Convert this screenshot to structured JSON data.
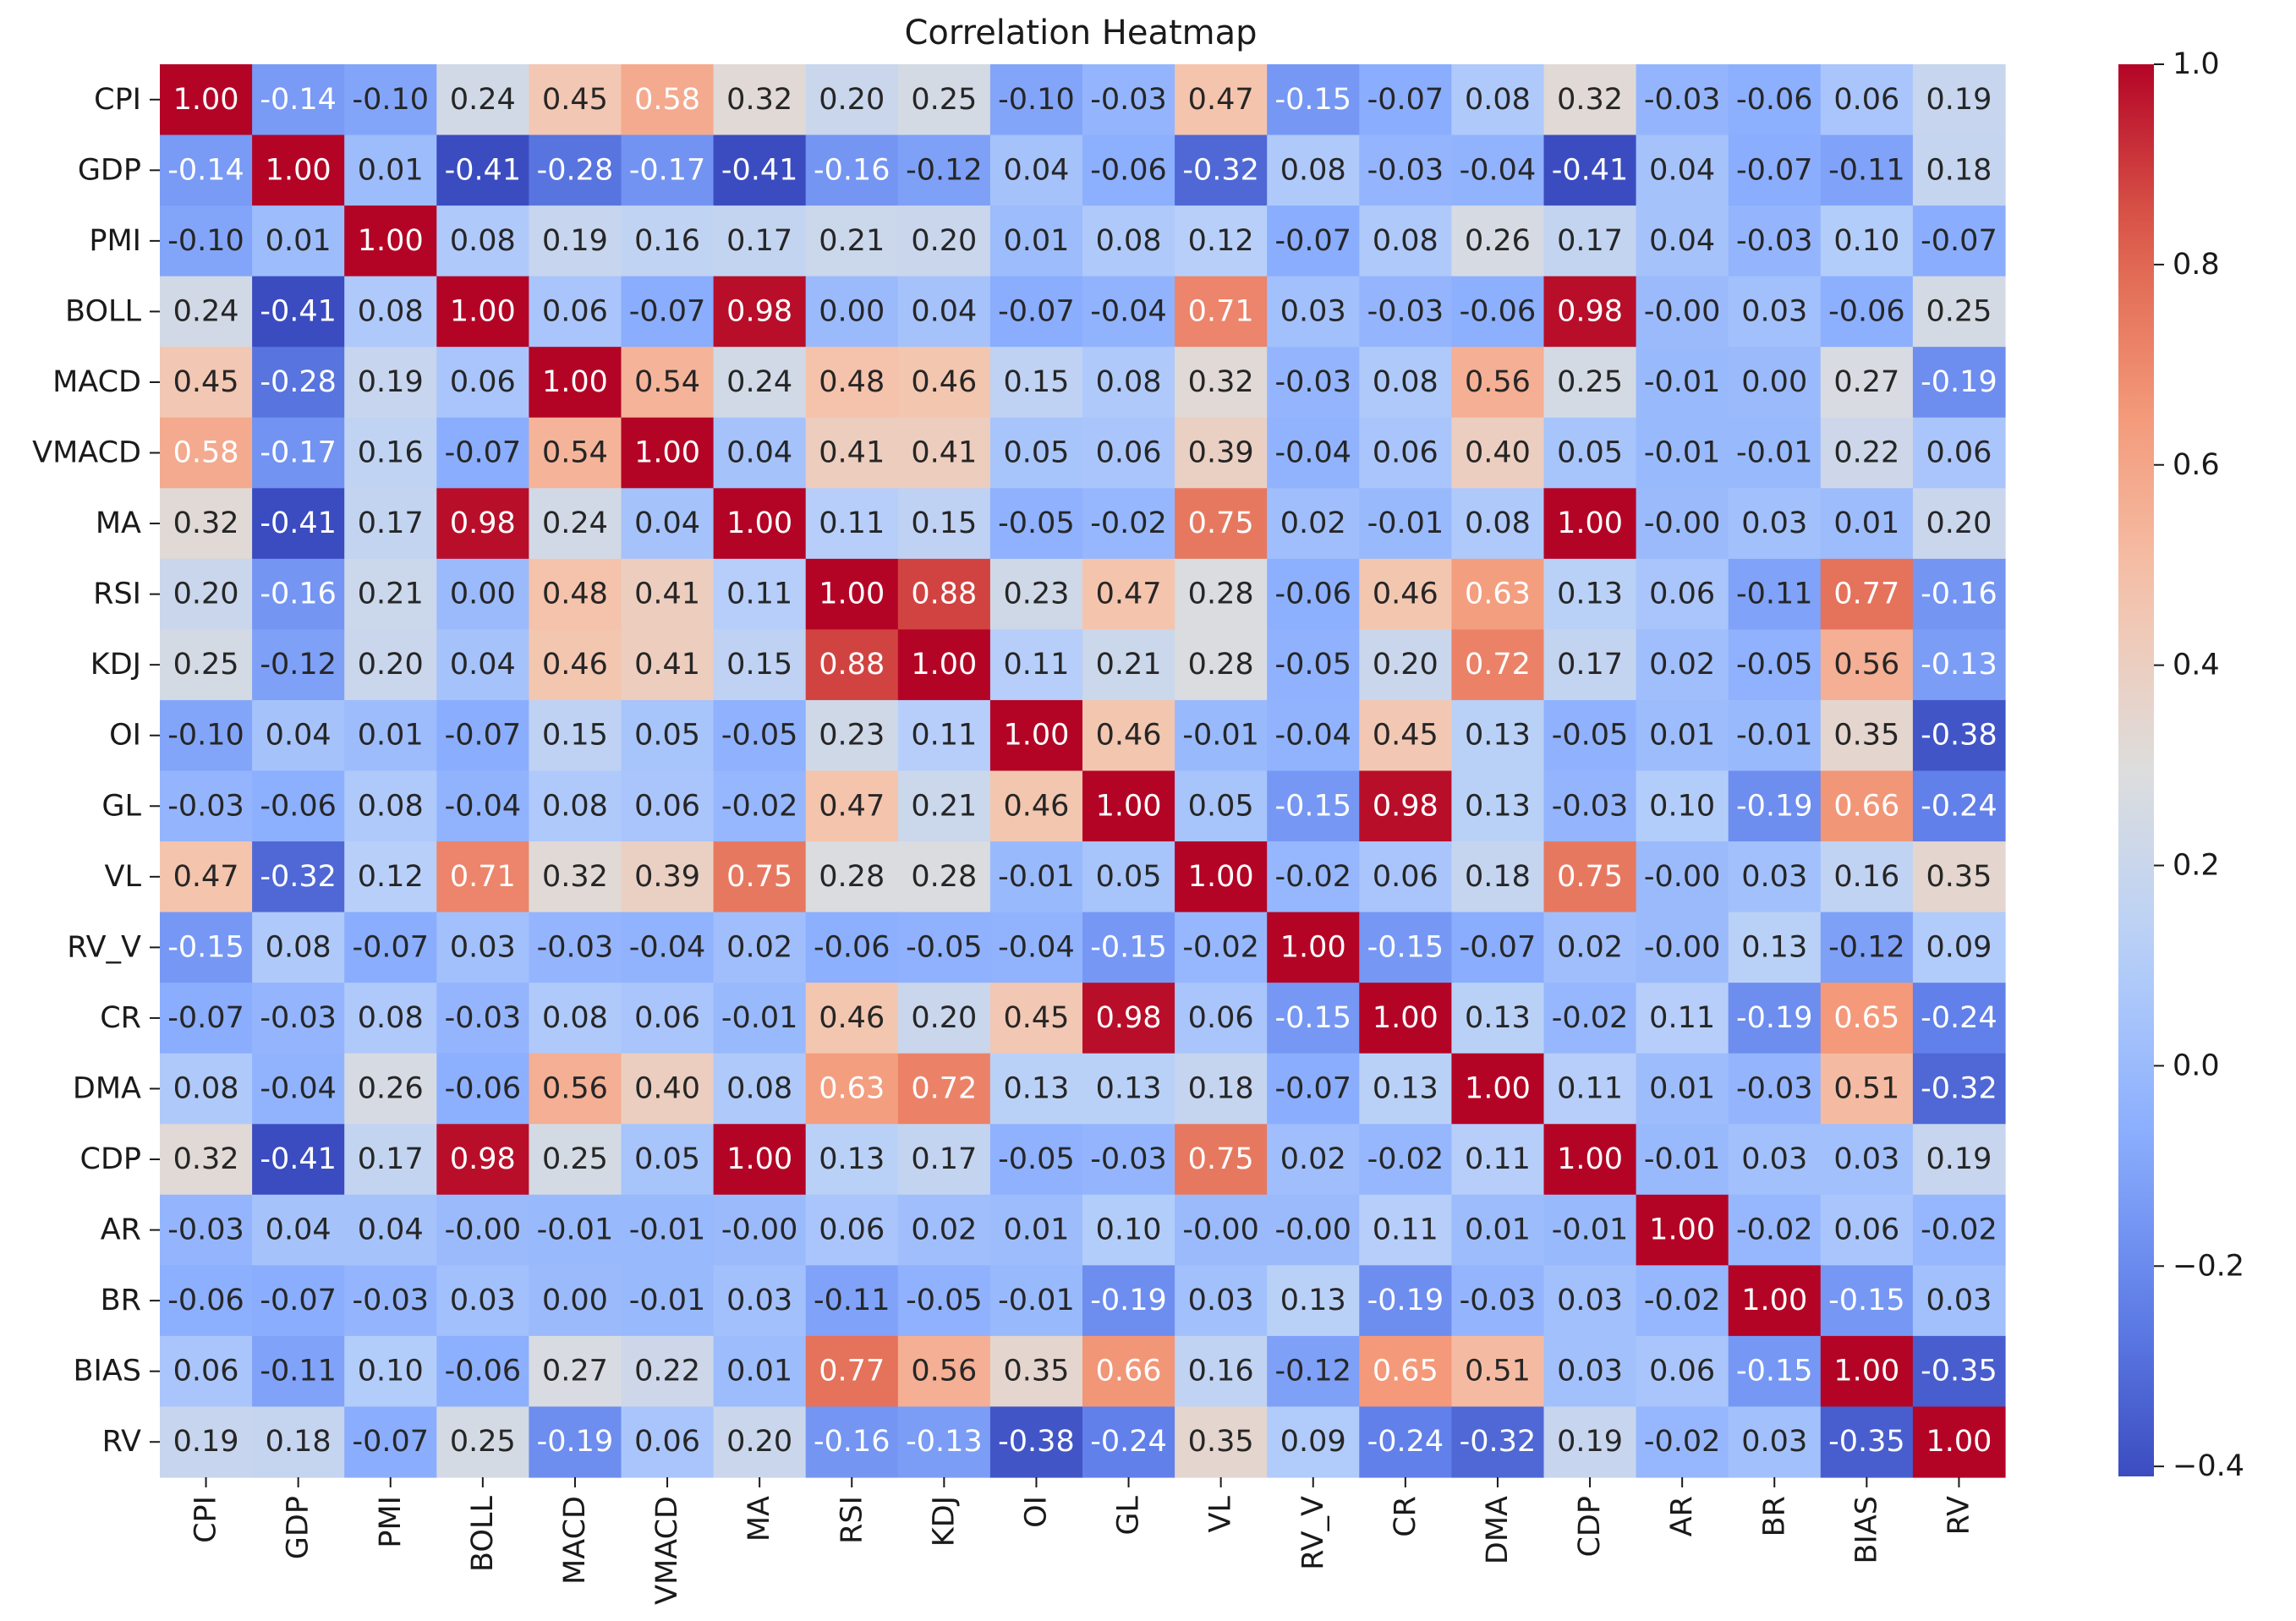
{
  "chart_data": {
    "type": "heatmap",
    "title": "Correlation Heatmap",
    "xlabel": "",
    "ylabel": "",
    "labels": [
      "CPI",
      "GDP",
      "PMI",
      "BOLL",
      "MACD",
      "VMACD",
      "MA",
      "RSI",
      "KDJ",
      "OI",
      "GL",
      "VL",
      "RV_V",
      "CR",
      "DMA",
      "CDP",
      "AR",
      "BR",
      "BIAS",
      "RV"
    ],
    "values": [
      [
        1.0,
        -0.14,
        -0.1,
        0.24,
        0.45,
        0.58,
        0.32,
        0.2,
        0.25,
        -0.1,
        -0.03,
        0.47,
        -0.15,
        -0.07,
        0.08,
        0.32,
        -0.03,
        -0.06,
        0.06,
        0.19
      ],
      [
        -0.14,
        1.0,
        0.01,
        -0.41,
        -0.28,
        -0.17,
        -0.41,
        -0.16,
        -0.12,
        0.04,
        -0.06,
        -0.32,
        0.08,
        -0.03,
        -0.04,
        -0.41,
        0.04,
        -0.07,
        -0.11,
        0.18
      ],
      [
        -0.1,
        0.01,
        1.0,
        0.08,
        0.19,
        0.16,
        0.17,
        0.21,
        0.2,
        0.01,
        0.08,
        0.12,
        -0.07,
        0.08,
        0.26,
        0.17,
        0.04,
        -0.03,
        0.1,
        -0.07
      ],
      [
        0.24,
        -0.41,
        0.08,
        1.0,
        0.06,
        -0.07,
        0.98,
        0.0,
        0.04,
        -0.07,
        -0.04,
        0.71,
        0.03,
        -0.03,
        -0.06,
        0.98,
        -0.0,
        0.03,
        -0.06,
        0.25
      ],
      [
        0.45,
        -0.28,
        0.19,
        0.06,
        1.0,
        0.54,
        0.24,
        0.48,
        0.46,
        0.15,
        0.08,
        0.32,
        -0.03,
        0.08,
        0.56,
        0.25,
        -0.01,
        0.0,
        0.27,
        -0.19
      ],
      [
        0.58,
        -0.17,
        0.16,
        -0.07,
        0.54,
        1.0,
        0.04,
        0.41,
        0.41,
        0.05,
        0.06,
        0.39,
        -0.04,
        0.06,
        0.4,
        0.05,
        -0.01,
        -0.01,
        0.22,
        0.06
      ],
      [
        0.32,
        -0.41,
        0.17,
        0.98,
        0.24,
        0.04,
        1.0,
        0.11,
        0.15,
        -0.05,
        -0.02,
        0.75,
        0.02,
        -0.01,
        0.08,
        1.0,
        -0.0,
        0.03,
        0.01,
        0.2
      ],
      [
        0.2,
        -0.16,
        0.21,
        0.0,
        0.48,
        0.41,
        0.11,
        1.0,
        0.88,
        0.23,
        0.47,
        0.28,
        -0.06,
        0.46,
        0.63,
        0.13,
        0.06,
        -0.11,
        0.77,
        -0.16
      ],
      [
        0.25,
        -0.12,
        0.2,
        0.04,
        0.46,
        0.41,
        0.15,
        0.88,
        1.0,
        0.11,
        0.21,
        0.28,
        -0.05,
        0.2,
        0.72,
        0.17,
        0.02,
        -0.05,
        0.56,
        -0.13
      ],
      [
        -0.1,
        0.04,
        0.01,
        -0.07,
        0.15,
        0.05,
        -0.05,
        0.23,
        0.11,
        1.0,
        0.46,
        -0.01,
        -0.04,
        0.45,
        0.13,
        -0.05,
        0.01,
        -0.01,
        0.35,
        -0.38
      ],
      [
        -0.03,
        -0.06,
        0.08,
        -0.04,
        0.08,
        0.06,
        -0.02,
        0.47,
        0.21,
        0.46,
        1.0,
        0.05,
        -0.15,
        0.98,
        0.13,
        -0.03,
        0.1,
        -0.19,
        0.66,
        -0.24
      ],
      [
        0.47,
        -0.32,
        0.12,
        0.71,
        0.32,
        0.39,
        0.75,
        0.28,
        0.28,
        -0.01,
        0.05,
        1.0,
        -0.02,
        0.06,
        0.18,
        0.75,
        -0.0,
        0.03,
        0.16,
        0.35
      ],
      [
        -0.15,
        0.08,
        -0.07,
        0.03,
        -0.03,
        -0.04,
        0.02,
        -0.06,
        -0.05,
        -0.04,
        -0.15,
        -0.02,
        1.0,
        -0.15,
        -0.07,
        0.02,
        -0.0,
        0.13,
        -0.12,
        0.09
      ],
      [
        -0.07,
        -0.03,
        0.08,
        -0.03,
        0.08,
        0.06,
        -0.01,
        0.46,
        0.2,
        0.45,
        0.98,
        0.06,
        -0.15,
        1.0,
        0.13,
        -0.02,
        0.11,
        -0.19,
        0.65,
        -0.24
      ],
      [
        0.08,
        -0.04,
        0.26,
        -0.06,
        0.56,
        0.4,
        0.08,
        0.63,
        0.72,
        0.13,
        0.13,
        0.18,
        -0.07,
        0.13,
        1.0,
        0.11,
        0.01,
        -0.03,
        0.51,
        -0.32
      ],
      [
        0.32,
        -0.41,
        0.17,
        0.98,
        0.25,
        0.05,
        1.0,
        0.13,
        0.17,
        -0.05,
        -0.03,
        0.75,
        0.02,
        -0.02,
        0.11,
        1.0,
        -0.01,
        0.03,
        0.03,
        0.19
      ],
      [
        -0.03,
        0.04,
        0.04,
        -0.0,
        -0.01,
        -0.01,
        -0.0,
        0.06,
        0.02,
        0.01,
        0.1,
        -0.0,
        -0.0,
        0.11,
        0.01,
        -0.01,
        1.0,
        -0.02,
        0.06,
        -0.02
      ],
      [
        -0.06,
        -0.07,
        -0.03,
        0.03,
        0.0,
        -0.01,
        0.03,
        -0.11,
        -0.05,
        -0.01,
        -0.19,
        0.03,
        0.13,
        -0.19,
        -0.03,
        0.03,
        -0.02,
        1.0,
        -0.15,
        0.03
      ],
      [
        0.06,
        -0.11,
        0.1,
        -0.06,
        0.27,
        0.22,
        0.01,
        0.77,
        0.56,
        0.35,
        0.66,
        0.16,
        -0.12,
        0.65,
        0.51,
        0.03,
        0.06,
        -0.15,
        1.0,
        -0.35
      ],
      [
        0.19,
        0.18,
        -0.07,
        0.25,
        -0.19,
        0.06,
        0.2,
        -0.16,
        -0.13,
        -0.38,
        -0.24,
        0.35,
        0.09,
        -0.24,
        -0.32,
        0.19,
        -0.02,
        0.03,
        -0.35,
        1.0
      ]
    ],
    "colormap": "coolwarm",
    "vmin": -0.41,
    "vmax": 1.0,
    "colorbar_ticks": [
      1.0,
      0.8,
      0.6,
      0.4,
      0.2,
      0.0,
      -0.2,
      -0.4
    ],
    "colorbar_tick_labels": [
      "1.0",
      "0.8",
      "0.6",
      "0.4",
      "0.2",
      "0.0",
      "−0.2",
      "−0.4"
    ],
    "annotations_format": "0.00"
  }
}
